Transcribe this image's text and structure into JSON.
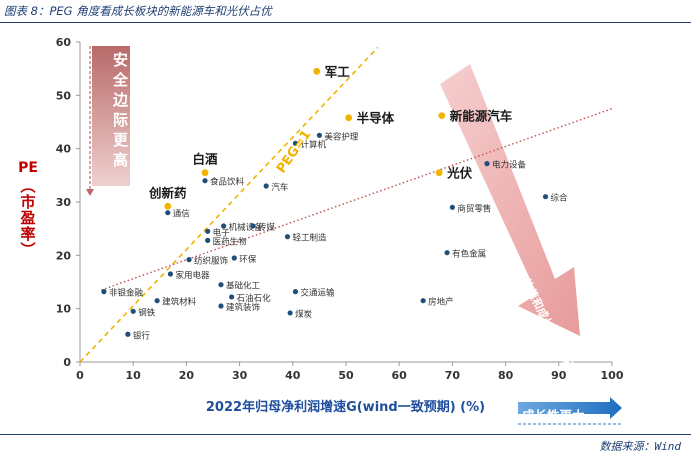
{
  "title": "图表 8：PEG 角度看成长板块的新能源车和光伏占优",
  "source": "数据来源：Wind",
  "chart_data": {
    "type": "scatter",
    "xlabel": "2022年归母净利润增速G(wind一致预期) (%)",
    "ylabel_main": "PE",
    "ylabel_sub": "（市盈率）",
    "xlim": [
      0,
      100
    ],
    "ylim": [
      0,
      60
    ],
    "xticks": [
      0,
      10,
      20,
      30,
      40,
      50,
      60,
      70,
      80,
      90,
      100
    ],
    "yticks": [
      0,
      10,
      20,
      30,
      40,
      50,
      60
    ],
    "peg_line_label": "PEG=1",
    "peg_line": {
      "x": [
        0,
        56
      ],
      "y": [
        0,
        59
      ]
    },
    "trend_line": {
      "x": [
        4,
        100
      ],
      "y": [
        13.5,
        47.5
      ]
    },
    "annotation_up": "安全边际更高",
    "annotation_down_right": "PEG<1，估值和成长性的匹配度更高",
    "annotation_right": "成长性更大",
    "highlight_color": "#f0b400",
    "normal_color": "#1f4e79",
    "points": [
      {
        "name": "军工",
        "x": 44.5,
        "y": 54.5,
        "highlight": true
      },
      {
        "name": "半导体",
        "x": 50.5,
        "y": 45.8,
        "highlight": true
      },
      {
        "name": "新能源汽车",
        "x": 68,
        "y": 46.2,
        "highlight": true
      },
      {
        "name": "光伏",
        "x": 67.5,
        "y": 35.5,
        "highlight": true
      },
      {
        "name": "白酒",
        "x": 23.5,
        "y": 35.5,
        "highlight": true
      },
      {
        "name": "创新药",
        "x": 16.5,
        "y": 29.2,
        "highlight": true
      },
      {
        "name": "美容护理",
        "x": 45,
        "y": 42.5
      },
      {
        "name": "计算机",
        "x": 40.5,
        "y": 41
      },
      {
        "name": "食品饮料",
        "x": 23.5,
        "y": 34
      },
      {
        "name": "汽车",
        "x": 35,
        "y": 33
      },
      {
        "name": "电力设备",
        "x": 76.5,
        "y": 37.2
      },
      {
        "name": "综合",
        "x": 87.5,
        "y": 31
      },
      {
        "name": "商贸零售",
        "x": 70,
        "y": 29
      },
      {
        "name": "通信",
        "x": 16.5,
        "y": 28
      },
      {
        "name": "电子",
        "x": 24,
        "y": 24.5
      },
      {
        "name": "机械设备",
        "x": 27,
        "y": 25.5
      },
      {
        "name": "传媒",
        "x": 32.5,
        "y": 25.5
      },
      {
        "name": "医药生物",
        "x": 24,
        "y": 22.8
      },
      {
        "name": "轻工制造",
        "x": 39,
        "y": 23.5
      },
      {
        "name": "环保",
        "x": 29,
        "y": 19.5
      },
      {
        "name": "纺织服饰",
        "x": 20.5,
        "y": 19.2
      },
      {
        "name": "家用电器",
        "x": 17,
        "y": 16.5
      },
      {
        "name": "有色金属",
        "x": 69,
        "y": 20.5
      },
      {
        "name": "基础化工",
        "x": 26.5,
        "y": 14.5
      },
      {
        "name": "非银金融",
        "x": 4.5,
        "y": 13.2
      },
      {
        "name": "交通运输",
        "x": 40.5,
        "y": 13.2
      },
      {
        "name": "石油石化",
        "x": 28.5,
        "y": 12.2
      },
      {
        "name": "建筑材料",
        "x": 14.5,
        "y": 11.5
      },
      {
        "name": "钢铁",
        "x": 10,
        "y": 9.5
      },
      {
        "name": "房地产",
        "x": 64.5,
        "y": 11.5
      },
      {
        "name": "煤炭",
        "x": 39.5,
        "y": 9.2
      },
      {
        "name": "建筑装饰",
        "x": 26.5,
        "y": 10.5
      },
      {
        "name": "银行",
        "x": 9,
        "y": 5.2
      }
    ]
  }
}
